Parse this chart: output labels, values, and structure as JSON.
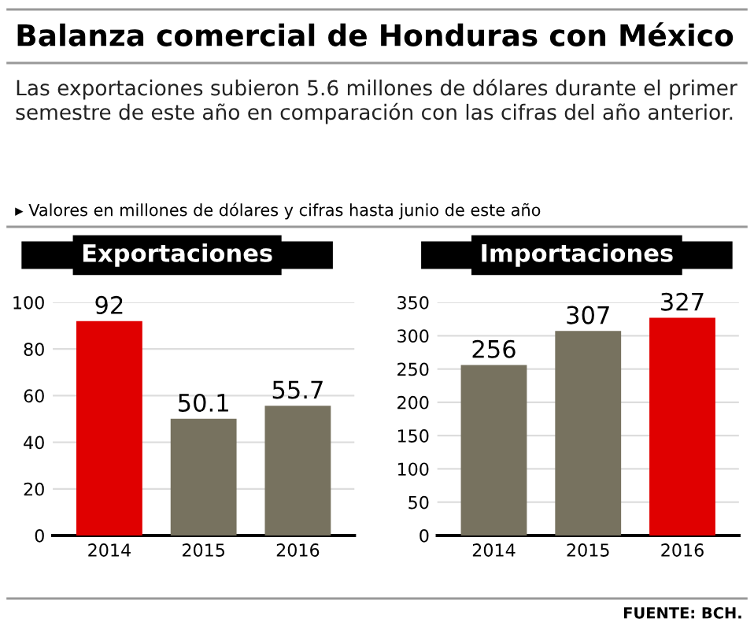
{
  "chart_data": [
    {
      "type": "bar",
      "title": "Exportaciones",
      "categories": [
        "2014",
        "2015",
        "2016"
      ],
      "values": [
        92,
        50.1,
        55.7
      ],
      "colors": [
        "#e00000",
        "#77725f",
        "#77725f"
      ],
      "ylim": [
        0,
        100
      ],
      "yticks": [
        0,
        20,
        40,
        60,
        80,
        100
      ],
      "grid": "y",
      "data_labels": true,
      "annotations": [
        "Balanza comercial de Honduras con México",
        "Las exportaciones subieron 5.6 millones de dólares durante el primer semestre de este año en comparación con las cifras del año anterior.",
        "▸ Valores en millones de dólares y cifras hasta junio de este año"
      ]
    },
    {
      "type": "bar",
      "title": "Importaciones",
      "categories": [
        "2014",
        "2015",
        "2016"
      ],
      "values": [
        256,
        307,
        327
      ],
      "colors": [
        "#77725f",
        "#77725f",
        "#e00000"
      ],
      "ylim": [
        0,
        350
      ],
      "yticks": [
        0,
        50,
        100,
        150,
        200,
        250,
        300,
        350
      ],
      "grid": "y",
      "data_labels": true,
      "annotations": [
        "FUENTE: BCH."
      ]
    }
  ]
}
